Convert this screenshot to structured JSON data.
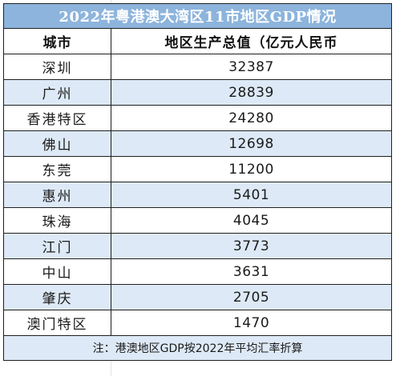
{
  "table": {
    "title": "2022年粤港澳大湾区11市地区GDP情况",
    "headers": {
      "city": "城市",
      "gdp": "地区生产总值（亿元人民币"
    },
    "rows": [
      {
        "city": "深圳",
        "gdp": "32387"
      },
      {
        "city": "广州",
        "gdp": "28839"
      },
      {
        "city": "香港特区",
        "gdp": "24280"
      },
      {
        "city": "佛山",
        "gdp": "12698"
      },
      {
        "city": "东莞",
        "gdp": "11200"
      },
      {
        "city": "惠州",
        "gdp": "5401"
      },
      {
        "city": "珠海",
        "gdp": "4045"
      },
      {
        "city": "江门",
        "gdp": "3773"
      },
      {
        "city": "中山",
        "gdp": "3631"
      },
      {
        "city": "肇庆",
        "gdp": "2705"
      },
      {
        "city": "澳门特区",
        "gdp": "1470"
      }
    ],
    "note": "注：港澳地区GDP按2022年平均汇率折算"
  },
  "colors": {
    "title_bg": "#8db4dc",
    "title_text": "#ffffff",
    "alt_row_bg": "#dde9f6",
    "border": "#1f1f1f"
  }
}
